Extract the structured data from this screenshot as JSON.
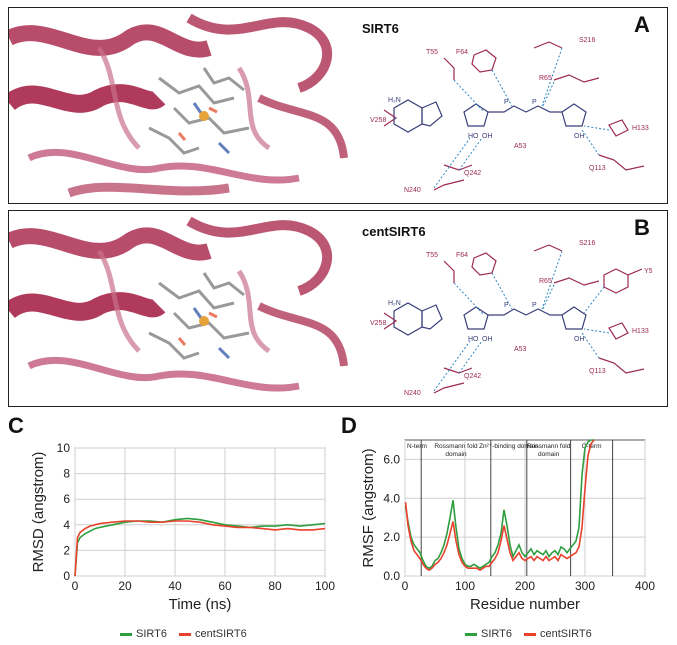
{
  "panels": {
    "A": {
      "letter": "A",
      "protein": "SIRT6"
    },
    "B": {
      "letter": "B",
      "protein": "centSIRT6"
    },
    "C": {
      "letter": "C"
    },
    "D": {
      "letter": "D"
    }
  },
  "residues_A": [
    "S216",
    "T55",
    "F64",
    "R65",
    "V258",
    "H133",
    "A53",
    "Q242",
    "Q113",
    "N240"
  ],
  "residues_B": [
    "S216",
    "T55",
    "F64",
    "R65",
    "Y5",
    "V258",
    "H133",
    "A53",
    "Q242",
    "Q113",
    "N240"
  ],
  "colors": {
    "ribbon": "#b03a5b",
    "residue": "#9c2a52",
    "ligand": "#3a3f7a",
    "hbond": "#2e86c1",
    "sirt6": "#2e9e3e",
    "centsirt6": "#e8412c"
  },
  "chart_data": [
    {
      "type": "line",
      "title": "",
      "xlabel": "Time (ns)",
      "ylabel": "RMSD (angstrom)",
      "xlim": [
        0,
        100
      ],
      "ylim": [
        0,
        10
      ],
      "xticks": [
        0,
        20,
        40,
        60,
        80,
        100
      ],
      "yticks": [
        0,
        2,
        4,
        6,
        8,
        10
      ],
      "grid": true,
      "legend_placement": "bottom",
      "series": [
        {
          "name": "SIRT6",
          "color": "#2e9e3e",
          "x": [
            0,
            1,
            2,
            4,
            6,
            8,
            10,
            15,
            20,
            25,
            30,
            35,
            40,
            45,
            50,
            55,
            60,
            65,
            70,
            75,
            80,
            85,
            90,
            95,
            100
          ],
          "y": [
            0,
            2.6,
            3.0,
            3.3,
            3.5,
            3.7,
            3.8,
            4.0,
            4.2,
            4.3,
            4.3,
            4.2,
            4.4,
            4.5,
            4.4,
            4.2,
            4.0,
            3.9,
            3.8,
            3.9,
            3.9,
            4.0,
            3.9,
            4.0,
            4.1
          ]
        },
        {
          "name": "centSIRT6",
          "color": "#e8412c",
          "x": [
            0,
            1,
            2,
            4,
            6,
            8,
            10,
            15,
            20,
            25,
            30,
            35,
            40,
            45,
            50,
            55,
            60,
            65,
            70,
            75,
            80,
            85,
            90,
            95,
            100
          ],
          "y": [
            0,
            3.0,
            3.4,
            3.7,
            3.9,
            4.0,
            4.1,
            4.2,
            4.3,
            4.3,
            4.2,
            4.2,
            4.3,
            4.3,
            4.2,
            4.0,
            3.9,
            3.8,
            3.8,
            3.7,
            3.6,
            3.7,
            3.6,
            3.6,
            3.7
          ]
        }
      ]
    },
    {
      "type": "line",
      "title": "",
      "xlabel": "Residue number",
      "ylabel": "RMSF (angstrom)",
      "xlim": [
        0,
        400
      ],
      "ylim": [
        0,
        7
      ],
      "xticks": [
        0,
        100,
        200,
        300,
        400
      ],
      "yticks": [
        0.0,
        2.0,
        4.0,
        6.0
      ],
      "grid": true,
      "legend_placement": "bottom",
      "domain_boundaries": [
        27,
        143,
        203,
        276,
        346
      ],
      "domain_labels": [
        "N-term",
        "Rossmann fold domain",
        "Zn²⁺-binding domain",
        "Rossmann fold domain",
        "C-term"
      ],
      "series": [
        {
          "name": "SIRT6",
          "color": "#2e9e3e",
          "x": [
            1,
            5,
            10,
            15,
            20,
            25,
            30,
            35,
            40,
            45,
            50,
            55,
            60,
            65,
            70,
            75,
            80,
            85,
            90,
            95,
            100,
            105,
            110,
            115,
            120,
            125,
            130,
            135,
            140,
            145,
            150,
            155,
            160,
            165,
            170,
            175,
            180,
            185,
            190,
            195,
            200,
            205,
            210,
            215,
            220,
            225,
            230,
            235,
            240,
            245,
            250,
            255,
            260,
            265,
            270,
            275,
            280,
            285,
            290,
            295,
            300,
            305,
            310,
            315
          ],
          "y": [
            3.6,
            2.8,
            2.0,
            1.6,
            1.4,
            1.2,
            0.8,
            0.5,
            0.4,
            0.5,
            0.8,
            0.9,
            1.2,
            1.6,
            2.2,
            3.0,
            3.9,
            2.5,
            1.4,
            0.9,
            0.6,
            0.5,
            0.5,
            0.6,
            0.5,
            0.4,
            0.5,
            0.6,
            0.7,
            1.0,
            1.2,
            1.6,
            2.2,
            3.4,
            2.6,
            1.6,
            1.0,
            1.3,
            1.6,
            1.2,
            1.0,
            1.2,
            1.4,
            1.1,
            1.3,
            1.2,
            1.1,
            1.3,
            1.0,
            1.2,
            1.3,
            1.1,
            1.5,
            1.4,
            1.2,
            1.4,
            1.6,
            1.8,
            2.5,
            5.2,
            6.6,
            6.9,
            7.0,
            7.0
          ]
        },
        {
          "name": "centSIRT6",
          "color": "#e8412c",
          "x": [
            1,
            5,
            10,
            15,
            20,
            25,
            30,
            35,
            40,
            45,
            50,
            55,
            60,
            65,
            70,
            75,
            80,
            85,
            90,
            95,
            100,
            105,
            110,
            115,
            120,
            125,
            130,
            135,
            140,
            145,
            150,
            155,
            160,
            165,
            170,
            175,
            180,
            185,
            190,
            195,
            200,
            205,
            210,
            215,
            220,
            225,
            230,
            235,
            240,
            245,
            250,
            255,
            260,
            265,
            270,
            275,
            280,
            285,
            290,
            295,
            300,
            305,
            310,
            315
          ],
          "y": [
            3.8,
            2.6,
            1.8,
            1.3,
            1.1,
            0.9,
            0.6,
            0.4,
            0.3,
            0.4,
            0.6,
            0.7,
            0.9,
            1.2,
            1.6,
            2.2,
            2.8,
            1.8,
            1.1,
            0.7,
            0.5,
            0.4,
            0.4,
            0.4,
            0.4,
            0.3,
            0.4,
            0.5,
            0.5,
            0.7,
            0.9,
            1.2,
            1.8,
            2.6,
            1.9,
            1.2,
            0.8,
            1.0,
            1.2,
            0.9,
            0.8,
            0.9,
            1.0,
            0.8,
            1.0,
            0.9,
            0.8,
            1.0,
            0.8,
            0.9,
            1.0,
            0.8,
            1.1,
            1.0,
            0.9,
            1.0,
            1.1,
            1.2,
            1.5,
            2.5,
            4.5,
            6.2,
            6.8,
            7.0
          ]
        }
      ]
    }
  ]
}
